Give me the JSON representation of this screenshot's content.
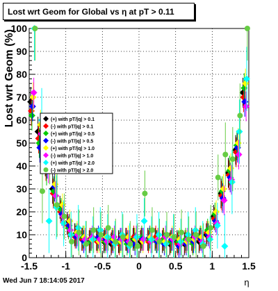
{
  "title": "Lost wrt Geom for Global vs   η at pT > 0.11",
  "timestamp": "Wed Jun  7 18:14:05 2017",
  "chart_data": {
    "type": "scatter",
    "xlabel": "η",
    "ylabel": "Lost wrt Geom (%)",
    "xlim": [
      -1.5,
      1.5
    ],
    "ylim": [
      0,
      100
    ],
    "xticks": [
      "-1.5",
      "-1",
      "-0.5",
      "0",
      "0.5",
      "1",
      "1.5"
    ],
    "yticks": [
      "0",
      "10",
      "20",
      "30",
      "40",
      "50",
      "60",
      "70",
      "80",
      "90",
      "100"
    ],
    "grid": true,
    "legend_position": "center-left",
    "series": [
      {
        "name": "(+) with pT/|q| > 0.1",
        "color": "#000000",
        "marker": "diamond",
        "x": [
          -1.45,
          -1.35,
          -1.25,
          -1.15,
          -1.05,
          -0.95,
          -0.85,
          -0.75,
          -0.65,
          -0.55,
          -0.45,
          -0.35,
          -0.25,
          -0.15,
          -0.05,
          0.05,
          0.15,
          0.25,
          0.35,
          0.45,
          0.55,
          0.65,
          0.75,
          0.85,
          0.95,
          1.05,
          1.15,
          1.25,
          1.35,
          1.45
        ],
        "y": [
          68,
          55,
          42,
          30,
          22,
          15,
          10,
          8,
          7,
          8,
          7,
          6,
          7,
          8,
          8,
          7,
          8,
          8,
          7,
          6,
          7,
          6,
          8,
          7,
          10,
          18,
          28,
          37,
          47,
          72
        ]
      },
      {
        "name": "(-) with pT/|q| > 0.1",
        "color": "#ff0000",
        "marker": "diamond",
        "x": [
          -1.45,
          -1.35,
          -1.25,
          -1.15,
          -1.05,
          -0.95,
          -0.85,
          -0.75,
          -0.65,
          -0.55,
          -0.45,
          -0.35,
          -0.25,
          -0.15,
          -0.05,
          0.05,
          0.15,
          0.25,
          0.35,
          0.45,
          0.55,
          0.65,
          0.75,
          0.85,
          0.95,
          1.05,
          1.15,
          1.25,
          1.35,
          1.45
        ],
        "y": [
          64,
          52,
          40,
          28,
          20,
          14,
          9,
          8,
          8,
          7,
          8,
          7,
          6,
          8,
          9,
          8,
          7,
          9,
          8,
          7,
          6,
          7,
          7,
          8,
          11,
          17,
          27,
          36,
          46,
          70
        ]
      },
      {
        "name": "(+) with pT/|q| > 0.5",
        "color": "#00cc00",
        "marker": "diamond",
        "x": [
          -1.45,
          -1.35,
          -1.25,
          -1.15,
          -1.05,
          -0.95,
          -0.85,
          -0.75,
          -0.65,
          -0.55,
          -0.45,
          -0.35,
          -0.25,
          -0.15,
          -0.05,
          0.05,
          0.15,
          0.25,
          0.35,
          0.45,
          0.55,
          0.65,
          0.75,
          0.85,
          0.95,
          1.05,
          1.15,
          1.25,
          1.35,
          1.45
        ],
        "y": [
          62,
          50,
          38,
          29,
          21,
          13,
          10,
          9,
          7,
          8,
          7,
          8,
          7,
          6,
          8,
          9,
          8,
          7,
          8,
          7,
          7,
          8,
          6,
          9,
          12,
          19,
          29,
          38,
          49,
          74
        ]
      },
      {
        "name": "(-) with pT/|q| > 0.5",
        "color": "#0000ff",
        "marker": "diamond",
        "x": [
          -1.45,
          -1.35,
          -1.25,
          -1.15,
          -1.05,
          -0.95,
          -0.85,
          -0.75,
          -0.65,
          -0.55,
          -0.45,
          -0.35,
          -0.25,
          -0.15,
          -0.05,
          0.05,
          0.15,
          0.25,
          0.35,
          0.45,
          0.55,
          0.65,
          0.75,
          0.85,
          0.95,
          1.05,
          1.15,
          1.25,
          1.35,
          1.45
        ],
        "y": [
          66,
          48,
          41,
          31,
          19,
          14,
          9,
          7,
          8,
          9,
          8,
          7,
          8,
          7,
          6,
          8,
          9,
          7,
          6,
          8,
          5,
          6,
          7,
          8,
          10,
          16,
          26,
          35,
          48,
          68
        ]
      },
      {
        "name": "(+) with pT/|q| > 1.0",
        "color": "#ffff00",
        "marker": "diamond",
        "x": [
          -1.45,
          -1.35,
          -1.25,
          -1.15,
          -1.05,
          -0.95,
          -0.85,
          -0.75,
          -0.65,
          -0.55,
          -0.45,
          -0.35,
          -0.25,
          -0.15,
          -0.05,
          0.05,
          0.15,
          0.25,
          0.35,
          0.45,
          0.55,
          0.65,
          0.75,
          0.85,
          0.95,
          1.05,
          1.15,
          1.25,
          1.35,
          1.45
        ],
        "y": [
          70,
          58,
          44,
          32,
          23,
          16,
          11,
          9,
          8,
          7,
          9,
          8,
          7,
          9,
          8,
          7,
          9,
          8,
          7,
          9,
          8,
          7,
          8,
          9,
          11,
          20,
          30,
          39,
          50,
          76
        ]
      },
      {
        "name": "(-) with pT/|q| > 1.0",
        "color": "#ff00ff",
        "marker": "diamond",
        "x": [
          -1.45,
          -1.35,
          -1.25,
          -1.15,
          -1.05,
          -0.95,
          -0.85,
          -0.75,
          -0.65,
          -0.55,
          -0.45,
          -0.35,
          -0.25,
          -0.15,
          -0.05,
          0.05,
          0.15,
          0.25,
          0.35,
          0.45,
          0.55,
          0.65,
          0.75,
          0.85,
          0.95,
          1.05,
          1.15,
          1.25,
          1.35,
          1.45
        ],
        "y": [
          72,
          54,
          39,
          27,
          18,
          12,
          10,
          8,
          9,
          8,
          7,
          9,
          8,
          7,
          9,
          8,
          7,
          8,
          9,
          8,
          6,
          8,
          9,
          7,
          9,
          15,
          25,
          34,
          45,
          66
        ]
      },
      {
        "name": "(+) with pT/|q| > 2.0",
        "color": "#00ffff",
        "marker": "diamond",
        "x": [
          -1.45,
          -1.35,
          -1.25,
          -1.15,
          -1.05,
          -0.95,
          -0.85,
          -0.75,
          -0.65,
          -0.55,
          -0.45,
          -0.35,
          -0.25,
          -0.15,
          -0.05,
          0.05,
          0.15,
          0.25,
          0.35,
          0.45,
          0.55,
          0.65,
          0.75,
          0.85,
          0.95,
          1.05,
          1.15,
          1.25,
          1.35,
          1.45
        ],
        "y": [
          100,
          60,
          16,
          22,
          15,
          10,
          13,
          6,
          8,
          12,
          9,
          6,
          10,
          5,
          9,
          16,
          8,
          10,
          6,
          9,
          7,
          10,
          12,
          6,
          8,
          14,
          5,
          33,
          55,
          78
        ]
      },
      {
        "name": "(-) with pT/|q| > 2.0",
        "color": "#66cc44",
        "marker": "circle",
        "x": [
          -1.45,
          -1.35,
          -1.25,
          -1.15,
          -1.05,
          -0.95,
          -0.85,
          -0.75,
          -0.65,
          -0.55,
          -0.45,
          -0.35,
          -0.25,
          -0.15,
          -0.05,
          0.05,
          0.15,
          0.25,
          0.35,
          0.45,
          0.55,
          0.65,
          0.75,
          0.85,
          0.95,
          1.05,
          1.15,
          1.25,
          1.35,
          1.45
        ],
        "y": [
          100,
          29,
          46,
          23,
          18,
          7,
          11,
          6,
          12,
          10,
          13,
          7,
          9,
          6,
          5,
          28,
          12,
          7,
          10,
          9,
          11,
          8,
          10,
          5,
          13,
          35,
          45,
          43,
          62,
          100
        ]
      }
    ]
  }
}
